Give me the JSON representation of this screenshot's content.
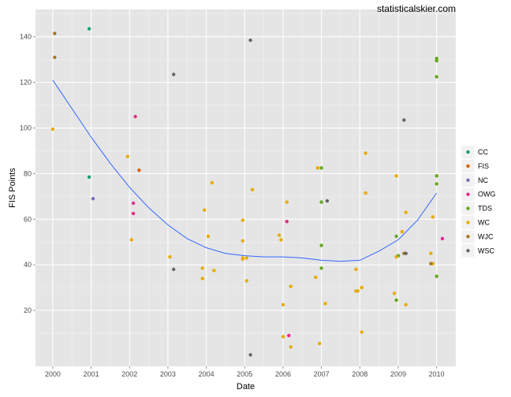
{
  "watermark": "statisticalskier.com",
  "chart_data": {
    "type": "scatter",
    "xlabel": "Date",
    "ylabel": "FIS Points",
    "x_ticks": [
      "2000",
      "2001",
      "2002",
      "2003",
      "2004",
      "2005",
      "2006",
      "2007",
      "2008",
      "2009",
      "2010"
    ],
    "y_ticks": [
      20,
      40,
      60,
      80,
      100,
      120,
      140
    ],
    "xlim": [
      1999.55,
      2010.5
    ],
    "ylim": [
      -4.5,
      152
    ],
    "grid": true,
    "legend_position": "right",
    "series": [
      {
        "name": "CC",
        "color": "#1b9e77",
        "points": [
          [
            2000.95,
            143.5
          ],
          [
            2000.95,
            78.5
          ]
        ]
      },
      {
        "name": "FIS",
        "color": "#d95f02",
        "points": [
          [
            2002.25,
            81.5
          ]
        ]
      },
      {
        "name": "NC",
        "color": "#7570b3",
        "points": [
          [
            2001.05,
            69
          ]
        ]
      },
      {
        "name": "OWG",
        "color": "#e7298a",
        "points": [
          [
            2002.15,
            105
          ],
          [
            2002.1,
            67
          ],
          [
            2002.1,
            62.5
          ],
          [
            2006.1,
            59
          ],
          [
            2006.15,
            9
          ],
          [
            2010.15,
            51.5
          ]
        ]
      },
      {
        "name": "TDS",
        "color": "#66a61e",
        "points": [
          [
            2007.0,
            82.5
          ],
          [
            2007.0,
            67.5
          ],
          [
            2007.0,
            48.5
          ],
          [
            2007.0,
            38.5
          ],
          [
            2008.95,
            52.5
          ],
          [
            2009.0,
            44
          ],
          [
            2008.95,
            24.5
          ],
          [
            2010.0,
            130.5
          ],
          [
            2010.0,
            129.5
          ],
          [
            2010.0,
            122.5
          ],
          [
            2010.0,
            79
          ],
          [
            2010.0,
            75.5
          ],
          [
            2010.0,
            35
          ]
        ]
      },
      {
        "name": "WC",
        "color": "#e6ab02",
        "points": [
          [
            2000.0,
            99.5
          ],
          [
            2001.95,
            87.5
          ],
          [
            2002.05,
            51
          ],
          [
            2003.05,
            43.5
          ],
          [
            2003.95,
            64
          ],
          [
            2004.05,
            52.5
          ],
          [
            2004.15,
            76
          ],
          [
            2003.9,
            38.5
          ],
          [
            2004.2,
            37.5
          ],
          [
            2003.9,
            34
          ],
          [
            2004.95,
            59.5
          ],
          [
            2004.95,
            50.5
          ],
          [
            2004.95,
            43
          ],
          [
            2004.95,
            42.5
          ],
          [
            2005.05,
            43
          ],
          [
            2005.05,
            33
          ],
          [
            2005.2,
            73
          ],
          [
            2005.9,
            53
          ],
          [
            2005.95,
            51
          ],
          [
            2006.1,
            67.5
          ],
          [
            2006.2,
            30.5
          ],
          [
            2006.0,
            22.5
          ],
          [
            2006.0,
            8.5
          ],
          [
            2006.2,
            4
          ],
          [
            2006.9,
            82.5
          ],
          [
            2006.85,
            34.5
          ],
          [
            2007.1,
            23
          ],
          [
            2006.95,
            5.5
          ],
          [
            2007.9,
            38
          ],
          [
            2007.9,
            28.5
          ],
          [
            2007.95,
            28.5
          ],
          [
            2008.05,
            30
          ],
          [
            2008.15,
            89
          ],
          [
            2008.15,
            71.5
          ],
          [
            2008.05,
            10.5
          ],
          [
            2008.95,
            79
          ],
          [
            2009.1,
            54.5
          ],
          [
            2008.95,
            43.5
          ],
          [
            2008.9,
            27.5
          ],
          [
            2009.2,
            63
          ],
          [
            2009.2,
            22.5
          ],
          [
            2009.85,
            45
          ],
          [
            2009.9,
            61
          ],
          [
            2009.9,
            40.5
          ]
        ]
      },
      {
        "name": "WJC",
        "color": "#a6761d",
        "points": [
          [
            2000.05,
            141.5
          ],
          [
            2000.05,
            131
          ],
          [
            2009.15,
            45
          ],
          [
            2009.85,
            40.5
          ]
        ]
      },
      {
        "name": "WSC",
        "color": "#666666",
        "points": [
          [
            2003.15,
            123.5
          ],
          [
            2003.15,
            38
          ],
          [
            2005.15,
            138.5
          ],
          [
            2005.15,
            0.5
          ],
          [
            2007.15,
            68
          ],
          [
            2009.15,
            103.5
          ],
          [
            2009.2,
            45
          ]
        ]
      }
    ],
    "smooth_curve": {
      "color": "#3366ff",
      "points": [
        [
          2000.0,
          121
        ],
        [
          2000.5,
          108.5
        ],
        [
          2001.0,
          96
        ],
        [
          2001.5,
          84.5
        ],
        [
          2002.0,
          74
        ],
        [
          2002.5,
          65
        ],
        [
          2003.0,
          57.5
        ],
        [
          2003.5,
          51.5
        ],
        [
          2004.0,
          47.5
        ],
        [
          2004.5,
          45
        ],
        [
          2005.0,
          44
        ],
        [
          2005.5,
          43.5
        ],
        [
          2006.0,
          43.5
        ],
        [
          2006.5,
          43
        ],
        [
          2007.0,
          42
        ],
        [
          2007.5,
          41.5
        ],
        [
          2008.0,
          42
        ],
        [
          2008.5,
          46
        ],
        [
          2009.0,
          51
        ],
        [
          2009.5,
          59.5
        ],
        [
          2010.0,
          71.5
        ]
      ]
    }
  }
}
